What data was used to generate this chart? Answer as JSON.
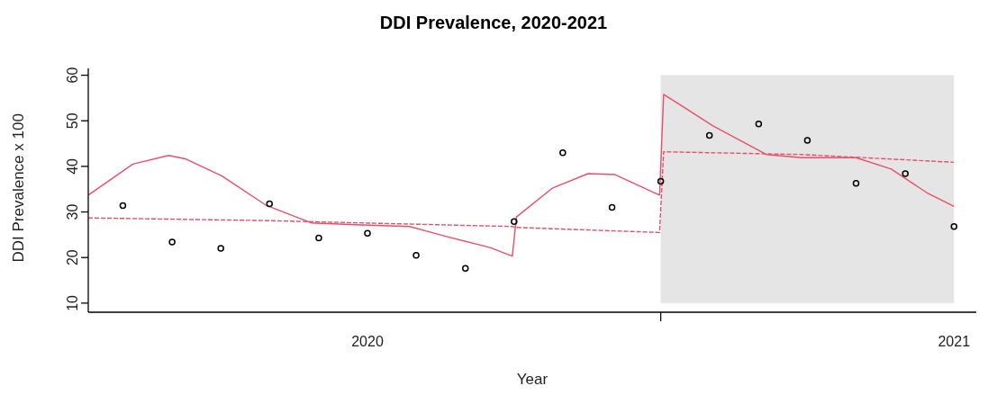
{
  "chart_data": {
    "type": "scatter",
    "title": "DDI Prevalence, 2020-2021",
    "xlabel": "Year",
    "ylabel": "DDI Prevalence x 100",
    "x": [
      2019.583,
      2019.667,
      2019.75,
      2019.833,
      2019.917,
      2020,
      2020.083,
      2020.167,
      2020.25,
      2020.333,
      2020.417,
      2020.5,
      2020.583,
      2020.667,
      2020.75,
      2020.833,
      2020.917,
      2021
    ],
    "series": [
      {
        "color": "#000000",
        "marker": "circle",
        "values": [
          31.4,
          23.4,
          22,
          31.8,
          24.3,
          25.3,
          20.5,
          17.6,
          27.9,
          43,
          31,
          36.7,
          46.8,
          49.3,
          45.7,
          36.3,
          38.4,
          26.8
        ]
      },
      {
        "type": "line",
        "color": "#e8506a",
        "line_style": "solid",
        "marker": "none",
        "x": [
          2019.524,
          2019.6,
          2019.661,
          2019.691,
          2019.752,
          2019.828,
          2019.904,
          2019.98,
          2020.072,
          2020.132,
          2020.209,
          2020.247,
          2020.254,
          2020.315,
          2020.376,
          2020.422,
          2020.498,
          2020.505,
          2020.589,
          2020.68,
          2020.741,
          2020.833,
          2020.893,
          2020.954,
          2021
        ],
        "values": [
          33.7,
          40.5,
          42.4,
          41.6,
          37.9,
          31.4,
          27.6,
          27.2,
          26.8,
          24.7,
          22.2,
          20.3,
          28.9,
          35.2,
          38.4,
          38.2,
          33.7,
          55.8,
          48.9,
          42.6,
          41.9,
          41.9,
          39.4,
          34.2,
          31.2
        ]
      },
      {
        "type": "line",
        "color": "#e8506a",
        "line_style": "dashed",
        "marker": "none",
        "x": [
          2019.524,
          2019.828,
          2020.247,
          2020.254,
          2020.498,
          2020.505,
          2020.741,
          2021
        ],
        "values": [
          28.7,
          28.1,
          26.8,
          26.6,
          25.5,
          43.2,
          42.6,
          40.9
        ]
      }
    ],
    "xlim": [
      2019.524,
      2021.038
    ],
    "xticks": [
      {
        "value": 2020,
        "label": "2020"
      },
      {
        "value": 2020.5,
        "label": null
      },
      {
        "value": 2021,
        "label": "2021"
      }
    ],
    "ylim": [
      8,
      61.5
    ],
    "yticks": [
      10,
      20,
      30,
      40,
      50,
      60
    ],
    "bands": [
      {
        "axis": "x",
        "from": 2020.5,
        "to": 2021,
        "label": null,
        "color": "#e5e5e5"
      }
    ],
    "grid": false,
    "legend": false
  }
}
